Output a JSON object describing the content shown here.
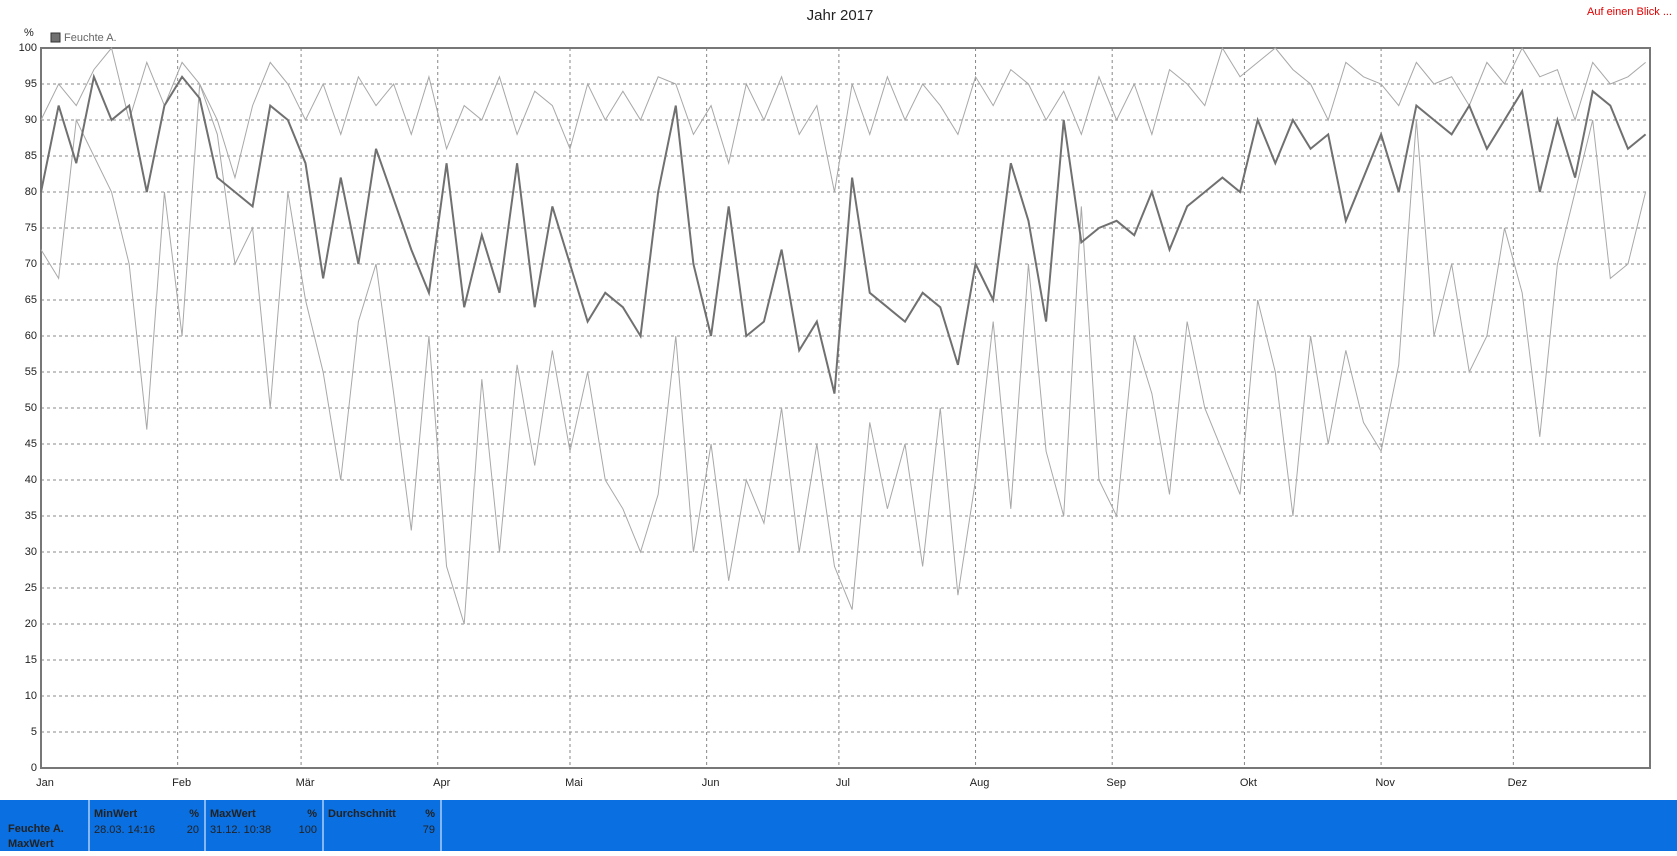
{
  "chart_data": {
    "type": "line",
    "title": "Jahr 2017",
    "link": "Auf einen Blick ...",
    "y_label": "%",
    "legend": "Feuchte A.",
    "legend_color": "#707070",
    "xlim": [
      0,
      365
    ],
    "xticks": [
      {
        "value": 0,
        "label": "Jan"
      },
      {
        "value": 31,
        "label": "Feb"
      },
      {
        "value": 59,
        "label": "Mär"
      },
      {
        "value": 90,
        "label": "Apr"
      },
      {
        "value": 120,
        "label": "Mai"
      },
      {
        "value": 151,
        "label": "Jun"
      },
      {
        "value": 181,
        "label": "Jul"
      },
      {
        "value": 212,
        "label": "Aug"
      },
      {
        "value": 243,
        "label": "Sep"
      },
      {
        "value": 273,
        "label": "Okt"
      },
      {
        "value": 304,
        "label": "Nov"
      },
      {
        "value": 334,
        "label": "Dez"
      }
    ],
    "ylim": [
      0,
      100
    ],
    "yticks": [
      0,
      5,
      10,
      15,
      20,
      25,
      30,
      35,
      40,
      45,
      50,
      55,
      60,
      65,
      70,
      75,
      80,
      85,
      90,
      95,
      100
    ],
    "grid": true,
    "x": [
      0,
      4,
      8,
      12,
      16,
      20,
      24,
      28,
      32,
      36,
      40,
      44,
      48,
      52,
      56,
      60,
      64,
      68,
      72,
      76,
      80,
      84,
      88,
      92,
      96,
      100,
      104,
      108,
      112,
      116,
      120,
      124,
      128,
      132,
      136,
      140,
      144,
      148,
      152,
      156,
      160,
      164,
      168,
      172,
      176,
      180,
      184,
      188,
      192,
      196,
      200,
      204,
      208,
      212,
      216,
      220,
      224,
      228,
      232,
      236,
      240,
      244,
      248,
      252,
      256,
      260,
      264,
      268,
      272,
      276,
      280,
      284,
      288,
      292,
      296,
      300,
      304,
      308,
      312,
      316,
      320,
      324,
      328,
      332,
      336,
      340,
      344,
      348,
      352,
      356,
      360,
      364
    ],
    "series": [
      {
        "color": "#a8a8a8",
        "width": 1,
        "values": [
          90,
          95,
          92,
          97,
          100,
          90,
          98,
          92,
          98,
          95,
          90,
          82,
          92,
          98,
          95,
          90,
          95,
          88,
          96,
          92,
          95,
          88,
          96,
          86,
          92,
          90,
          96,
          88,
          94,
          92,
          86,
          95,
          90,
          94,
          90,
          96,
          95,
          88,
          92,
          84,
          95,
          90,
          96,
          88,
          92,
          80,
          95,
          88,
          96,
          90,
          95,
          92,
          88,
          96,
          92,
          97,
          95,
          90,
          94,
          88,
          96,
          90,
          95,
          88,
          97,
          95,
          92,
          100,
          96,
          98,
          100,
          97,
          95,
          90,
          98,
          96,
          95,
          92,
          98,
          95,
          96,
          92,
          98,
          95,
          100,
          96,
          97,
          90,
          98,
          95,
          96,
          98
        ]
      },
      {
        "color": "#a8a8a8",
        "width": 1,
        "values": [
          72,
          68,
          90,
          85,
          80,
          70,
          47,
          80,
          60,
          95,
          88,
          70,
          75,
          50,
          80,
          65,
          55,
          40,
          62,
          70,
          52,
          33,
          60,
          28,
          20,
          54,
          30,
          56,
          42,
          58,
          44,
          55,
          40,
          36,
          30,
          38,
          60,
          30,
          45,
          26,
          40,
          34,
          50,
          30,
          45,
          28,
          22,
          48,
          36,
          45,
          28,
          50,
          24,
          40,
          62,
          36,
          70,
          44,
          35,
          78,
          40,
          35,
          60,
          52,
          38,
          62,
          50,
          44,
          38,
          65,
          55,
          35,
          60,
          45,
          58,
          48,
          44,
          56,
          90,
          60,
          70,
          55,
          60,
          75,
          66,
          46,
          70,
          80,
          90,
          68,
          70,
          80
        ]
      },
      {
        "color": "#707070",
        "width": 2,
        "values": [
          80,
          92,
          84,
          96,
          90,
          92,
          80,
          92,
          96,
          93,
          82,
          80,
          78,
          92,
          90,
          84,
          68,
          82,
          70,
          86,
          79,
          72,
          66,
          84,
          64,
          74,
          66,
          84,
          64,
          78,
          70,
          62,
          66,
          64,
          60,
          80,
          92,
          70,
          60,
          78,
          60,
          62,
          72,
          58,
          62,
          52,
          82,
          66,
          64,
          62,
          66,
          64,
          56,
          70,
          65,
          84,
          76,
          62,
          90,
          73,
          75,
          76,
          74,
          80,
          72,
          78,
          80,
          82,
          80,
          90,
          84,
          90,
          86,
          88,
          76,
          82,
          88,
          80,
          92,
          90,
          88,
          92,
          86,
          90,
          94,
          80,
          90,
          82,
          94,
          92,
          86,
          88
        ]
      }
    ]
  },
  "summary": {
    "row_label": "Feuchte A.",
    "row_sublabel": "MaxWert",
    "columns": [
      {
        "header": "MinWert",
        "unit": "%",
        "time": "28.03.  14:16",
        "value": 20
      },
      {
        "header": "MaxWert",
        "unit": "%",
        "time": "31.12.  10:38",
        "value": 100
      },
      {
        "header": "Durchschnitt",
        "unit": "%",
        "value": 79
      }
    ]
  }
}
